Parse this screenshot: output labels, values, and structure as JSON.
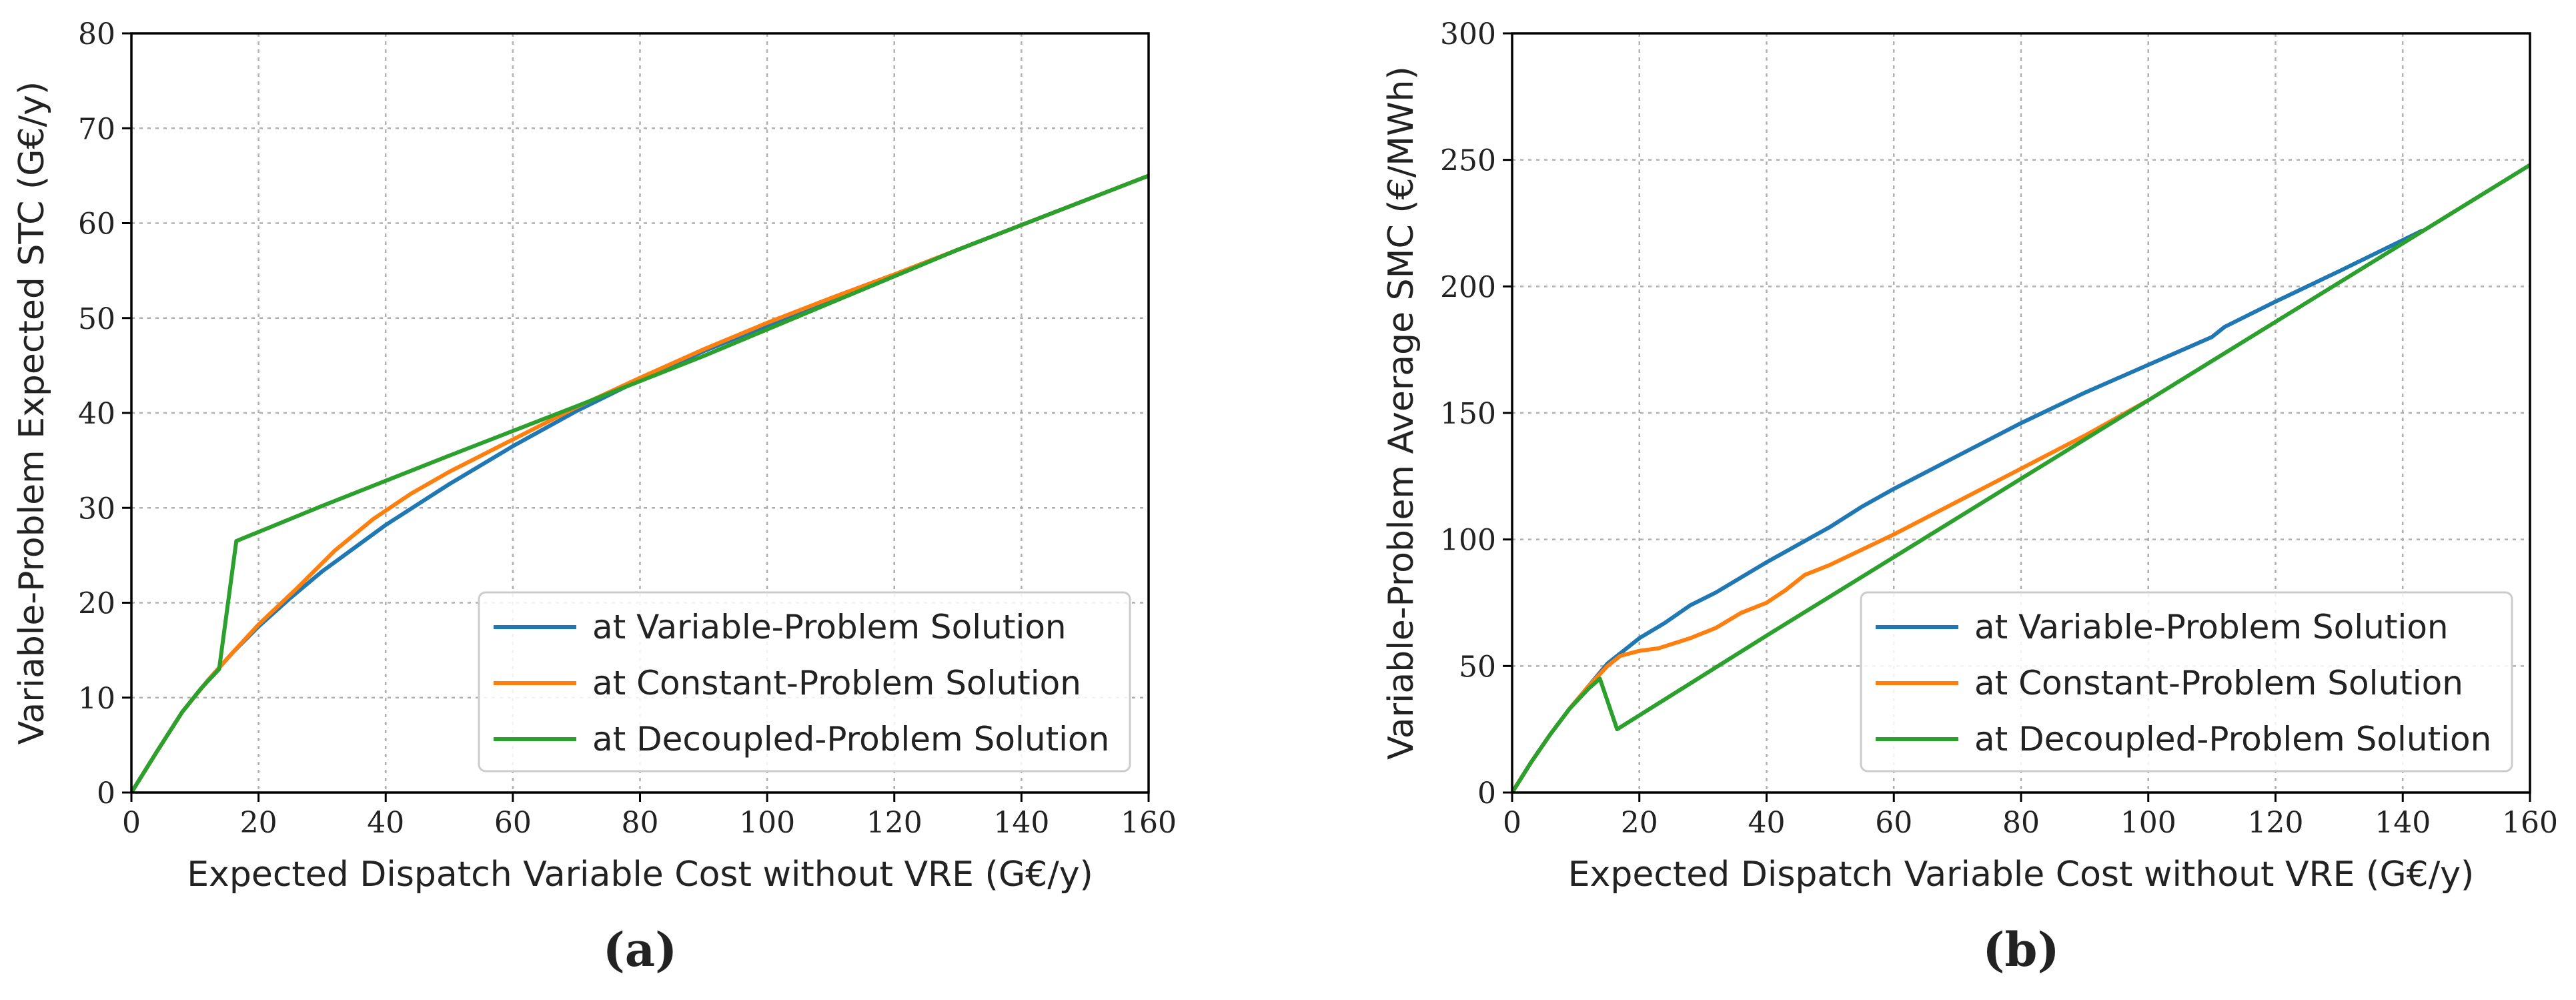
{
  "chart_data": [
    {
      "type": "line",
      "panel_label": "(a)",
      "title": "",
      "xlabel": "Expected Dispatch Variable Cost without VRE (G€/y)",
      "ylabel": "Variable-Problem Expected STC (G€/y)",
      "xlim": [
        0,
        160
      ],
      "ylim": [
        0,
        80
      ],
      "xticks": [
        0,
        20,
        40,
        60,
        80,
        100,
        120,
        140,
        160
      ],
      "yticks": [
        0,
        10,
        20,
        30,
        40,
        50,
        60,
        70,
        80
      ],
      "grid": true,
      "legend_position": "lower-right",
      "series": [
        {
          "name": "at Variable-Problem Solution",
          "color": "#1f77b4",
          "x": [
            0,
            4,
            8,
            12,
            16,
            20,
            25,
            30,
            40,
            50,
            60,
            70,
            80,
            90,
            100,
            110,
            120,
            130,
            140,
            150,
            160
          ],
          "y": [
            0,
            4.3,
            8.5,
            11.8,
            14.8,
            17.5,
            20.5,
            23.3,
            28.2,
            32.5,
            36.5,
            40.2,
            43.5,
            46.5,
            49.2,
            51.9,
            54.5,
            57.2,
            59.8,
            62.4,
            65
          ]
        },
        {
          "name": "at Constant-Problem Solution",
          "color": "#ff7f0e",
          "x": [
            0,
            4,
            8,
            12,
            16,
            20,
            26,
            32,
            38,
            44,
            50,
            60,
            70,
            80,
            90,
            100,
            110,
            120,
            130,
            140,
            150,
            160
          ],
          "y": [
            0,
            4.3,
            8.5,
            11.8,
            14.8,
            17.7,
            21.5,
            25.5,
            28.8,
            31.5,
            33.8,
            37.2,
            40.6,
            43.7,
            46.7,
            49.5,
            52.1,
            54.6,
            57.2,
            59.8,
            62.4,
            65
          ]
        },
        {
          "name": "at Decoupled-Problem Solution",
          "color": "#2ca02c",
          "x": [
            0,
            4,
            8,
            11,
            13.8,
            16.5,
            30,
            50,
            70,
            90,
            110,
            130,
            160
          ],
          "y": [
            0,
            4.3,
            8.5,
            11,
            13,
            26.5,
            30.2,
            35.5,
            40.7,
            46,
            51.6,
            57.2,
            65
          ]
        }
      ]
    },
    {
      "type": "line",
      "panel_label": "(b)",
      "title": "",
      "xlabel": "Expected Dispatch Variable Cost without VRE (G€/y)",
      "ylabel": "Variable-Problem Average SMC (€/MWh)",
      "xlim": [
        0,
        160
      ],
      "ylim": [
        0,
        300
      ],
      "xticks": [
        0,
        20,
        40,
        60,
        80,
        100,
        120,
        140,
        160
      ],
      "yticks": [
        0,
        50,
        100,
        150,
        200,
        250,
        300
      ],
      "grid": true,
      "legend_position": "lower-right",
      "series": [
        {
          "name": "at Variable-Problem Solution",
          "color": "#1f77b4",
          "x": [
            0,
            3,
            6,
            9,
            12,
            15,
            18,
            20,
            24,
            28,
            32,
            36,
            40,
            45,
            50,
            55,
            60,
            70,
            80,
            90,
            100,
            110,
            112,
            120,
            130,
            143
          ],
          "y": [
            0,
            12,
            23,
            33,
            42,
            51,
            57,
            61,
            67,
            74,
            79,
            85,
            91,
            98,
            105,
            113,
            120,
            133,
            146,
            158,
            169,
            180,
            184,
            194,
            206,
            222
          ]
        },
        {
          "name": "at Constant-Problem Solution",
          "color": "#ff7f0e",
          "x": [
            0,
            3,
            6,
            9,
            12,
            15,
            17,
            20,
            23,
            28,
            32,
            36,
            40,
            43,
            46,
            50,
            55,
            60,
            70,
            80,
            90,
            100
          ],
          "y": [
            0,
            12,
            23,
            33,
            42,
            50,
            54,
            56,
            57,
            61,
            65,
            71,
            75,
            80,
            86,
            90,
            96,
            102,
            115,
            128,
            141,
            155
          ]
        },
        {
          "name": "at Decoupled-Problem Solution",
          "color": "#2ca02c",
          "x": [
            0,
            3,
            6,
            9,
            12,
            13.8,
            16.5,
            40,
            60,
            80,
            100,
            120,
            140,
            160
          ],
          "y": [
            0,
            12,
            23,
            33,
            41,
            45,
            25,
            62,
            93,
            124,
            155,
            186,
            217,
            248
          ]
        }
      ]
    }
  ]
}
